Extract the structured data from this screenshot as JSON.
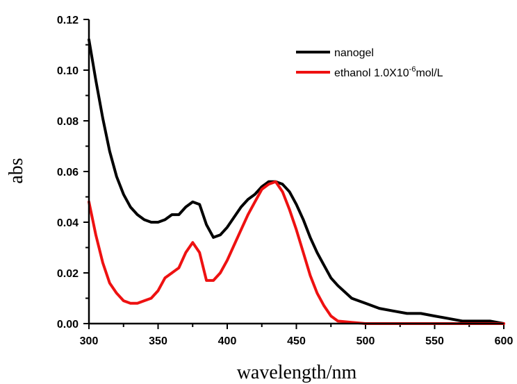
{
  "chart_data": {
    "type": "line",
    "xlabel": "wavelength/nm",
    "ylabel": "abs",
    "xlim": [
      300,
      600
    ],
    "ylim": [
      0,
      0.12
    ],
    "x_ticks": [
      300,
      350,
      400,
      450,
      500,
      550,
      600
    ],
    "x_tick_labels": [
      "300",
      "350",
      "400",
      "450",
      "500",
      "550",
      "600"
    ],
    "y_ticks": [
      0,
      0.02,
      0.04,
      0.06,
      0.08,
      0.1,
      0.12
    ],
    "y_tick_labels": [
      "0.00",
      "0.02",
      "0.04",
      "0.06",
      "0.08",
      "0.10",
      "0.12"
    ],
    "grid": false,
    "legend_position": "top-right",
    "series": [
      {
        "name": "nanogel",
        "color": "#000000",
        "x": [
          300,
          305,
          310,
          315,
          320,
          325,
          330,
          335,
          340,
          345,
          350,
          355,
          360,
          365,
          370,
          375,
          380,
          385,
          390,
          395,
          400,
          405,
          410,
          415,
          420,
          425,
          430,
          435,
          440,
          445,
          450,
          455,
          460,
          465,
          470,
          475,
          480,
          490,
          500,
          510,
          520,
          530,
          540,
          550,
          560,
          570,
          580,
          590,
          600
        ],
        "y": [
          0.112,
          0.096,
          0.081,
          0.068,
          0.058,
          0.051,
          0.046,
          0.043,
          0.041,
          0.04,
          0.04,
          0.041,
          0.043,
          0.043,
          0.046,
          0.048,
          0.047,
          0.039,
          0.034,
          0.035,
          0.038,
          0.042,
          0.046,
          0.049,
          0.051,
          0.054,
          0.056,
          0.056,
          0.055,
          0.052,
          0.047,
          0.041,
          0.034,
          0.028,
          0.023,
          0.018,
          0.015,
          0.01,
          0.008,
          0.006,
          0.005,
          0.004,
          0.004,
          0.003,
          0.002,
          0.001,
          0.001,
          0.001,
          0.0
        ]
      },
      {
        "name": "ethanol 1.0X10-6mol/L",
        "color": "#ee1111",
        "x": [
          300,
          305,
          310,
          315,
          320,
          325,
          330,
          335,
          340,
          345,
          350,
          355,
          360,
          365,
          370,
          375,
          380,
          385,
          390,
          395,
          400,
          405,
          410,
          415,
          420,
          425,
          430,
          435,
          440,
          445,
          450,
          455,
          460,
          465,
          470,
          475,
          480,
          490,
          500,
          520,
          540,
          560,
          580,
          600
        ],
        "y": [
          0.048,
          0.035,
          0.024,
          0.016,
          0.012,
          0.009,
          0.008,
          0.008,
          0.009,
          0.01,
          0.013,
          0.018,
          0.02,
          0.022,
          0.028,
          0.032,
          0.028,
          0.017,
          0.017,
          0.02,
          0.025,
          0.031,
          0.037,
          0.043,
          0.048,
          0.053,
          0.055,
          0.056,
          0.052,
          0.045,
          0.037,
          0.028,
          0.019,
          0.012,
          0.007,
          0.003,
          0.001,
          0.0005,
          0.0,
          0.0,
          0.0,
          0.0,
          0.0,
          0.0
        ]
      }
    ],
    "legend": {
      "entries": [
        {
          "text": "nanogel"
        },
        {
          "text_main": "ethanol 1.0X10",
          "text_sup": "-6",
          "text_tail": "mol/L"
        }
      ]
    }
  }
}
